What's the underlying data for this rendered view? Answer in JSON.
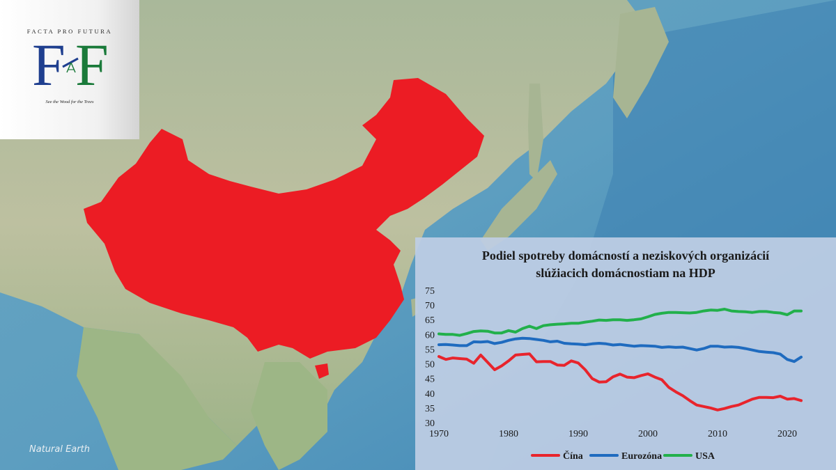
{
  "logo": {
    "top_text": "FACTA PRO FUTURA",
    "letter_left": "F",
    "letter_right": "F",
    "tagline": "See the Wood for the Trees",
    "color_left": "#1f3f8f",
    "color_right": "#1a7a3a"
  },
  "map": {
    "credit": "Natural Earth",
    "highlight_color": "#ec1c24"
  },
  "chart_data": {
    "type": "line",
    "title": [
      "Podiel spotreby domácností a neziskových organizácií",
      "slúžiacich domácnostiam na HDP"
    ],
    "ylim": [
      30,
      75
    ],
    "yticks": [
      30,
      35,
      40,
      45,
      50,
      55,
      60,
      65,
      70,
      75
    ],
    "xlim": [
      1970,
      2022
    ],
    "xticks": [
      1970,
      1980,
      1990,
      2000,
      2010,
      2020
    ],
    "grid": false,
    "legend_position": "bottom",
    "x": [
      1970,
      1971,
      1972,
      1973,
      1974,
      1975,
      1976,
      1977,
      1978,
      1979,
      1980,
      1981,
      1982,
      1983,
      1984,
      1985,
      1986,
      1987,
      1988,
      1989,
      1990,
      1991,
      1992,
      1993,
      1994,
      1995,
      1996,
      1997,
      1998,
      1999,
      2000,
      2001,
      2002,
      2003,
      2004,
      2005,
      2006,
      2007,
      2008,
      2009,
      2010,
      2011,
      2012,
      2013,
      2014,
      2015,
      2016,
      2017,
      2018,
      2019,
      2020,
      2021,
      2022
    ],
    "series": [
      {
        "name": "Čína",
        "color": "#e8242c",
        "values": [
          52.5,
          51.5,
          52.0,
          51.8,
          51.6,
          50.2,
          53.0,
          50.5,
          48.0,
          49.3,
          51.0,
          53.0,
          53.2,
          53.4,
          50.7,
          50.8,
          50.8,
          49.6,
          49.5,
          51.0,
          50.3,
          48.0,
          45.0,
          43.8,
          43.9,
          45.6,
          46.5,
          45.5,
          45.3,
          46.0,
          46.6,
          45.5,
          44.6,
          42.0,
          40.5,
          39.2,
          37.5,
          36.0,
          35.5,
          35.0,
          34.3,
          34.8,
          35.5,
          36.0,
          37.0,
          38.0,
          38.6,
          38.6,
          38.5,
          39.0,
          38.0,
          38.2,
          37.5
        ]
      },
      {
        "name": "Eurozóna",
        "color": "#1f6bbf",
        "values": [
          56.5,
          56.6,
          56.4,
          56.2,
          56.2,
          57.5,
          57.4,
          57.6,
          56.9,
          57.3,
          58.0,
          58.5,
          58.7,
          58.6,
          58.3,
          58.0,
          57.5,
          57.7,
          57.0,
          56.8,
          56.7,
          56.5,
          56.8,
          57.0,
          56.8,
          56.4,
          56.6,
          56.3,
          56.0,
          56.2,
          56.1,
          56.0,
          55.6,
          55.8,
          55.6,
          55.7,
          55.2,
          54.7,
          55.2,
          56.0,
          56.0,
          55.7,
          55.8,
          55.6,
          55.2,
          54.7,
          54.2,
          54.0,
          53.8,
          53.3,
          51.5,
          50.8,
          52.3
        ]
      },
      {
        "name": "USA",
        "color": "#22b04b",
        "values": [
          60.2,
          60.0,
          60.0,
          59.7,
          60.3,
          61.0,
          61.2,
          61.1,
          60.5,
          60.5,
          61.3,
          60.8,
          62.0,
          62.8,
          62.0,
          63.0,
          63.3,
          63.5,
          63.6,
          63.8,
          63.8,
          64.2,
          64.5,
          64.9,
          64.8,
          65.0,
          65.0,
          64.8,
          65.0,
          65.3,
          66.0,
          66.8,
          67.2,
          67.5,
          67.5,
          67.4,
          67.3,
          67.5,
          68.0,
          68.3,
          68.2,
          68.6,
          68.0,
          67.8,
          67.7,
          67.5,
          67.8,
          67.8,
          67.5,
          67.3,
          66.7,
          68.0,
          68.0
        ]
      }
    ]
  }
}
